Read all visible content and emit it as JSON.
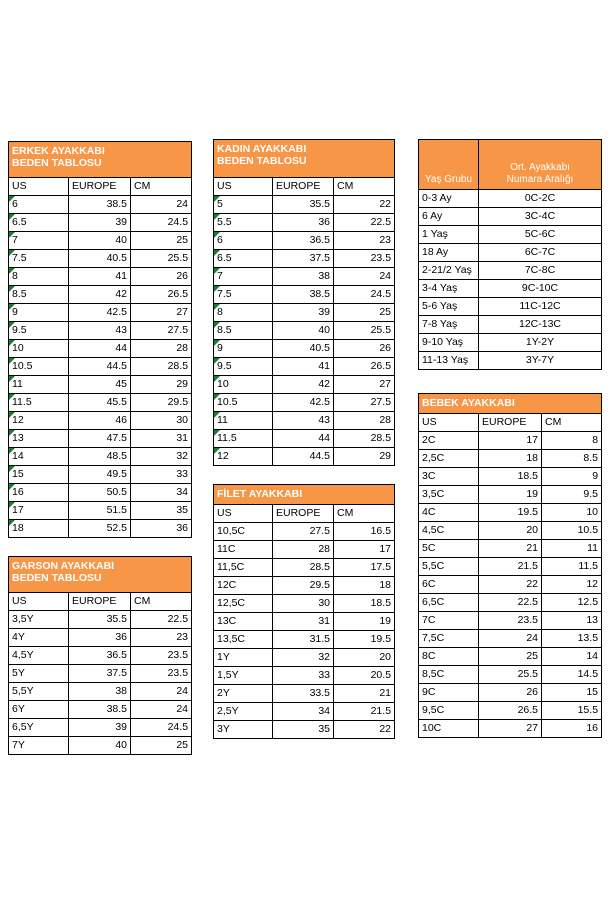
{
  "erkek": {
    "title1": "ERKEK AYAKKABI",
    "title2": "BEDEN TABLOSU",
    "headers": [
      "US",
      "EUROPE",
      "CM"
    ],
    "rows": [
      [
        "6",
        "38.5",
        "24"
      ],
      [
        "6.5",
        "39",
        "24.5"
      ],
      [
        "7",
        "40",
        "25"
      ],
      [
        "7.5",
        "40.5",
        "25.5"
      ],
      [
        "8",
        "41",
        "26"
      ],
      [
        "8.5",
        "42",
        "26.5"
      ],
      [
        "9",
        "42.5",
        "27"
      ],
      [
        "9.5",
        "43",
        "27.5"
      ],
      [
        "10",
        "44",
        "28"
      ],
      [
        "10.5",
        "44.5",
        "28.5"
      ],
      [
        "11",
        "45",
        "29"
      ],
      [
        "11.5",
        "45.5",
        "29.5"
      ],
      [
        "12",
        "46",
        "30"
      ],
      [
        "13",
        "47.5",
        "31"
      ],
      [
        "14",
        "48.5",
        "32"
      ],
      [
        "15",
        "49.5",
        "33"
      ],
      [
        "16",
        "50.5",
        "34"
      ],
      [
        "17",
        "51.5",
        "35"
      ],
      [
        "18",
        "52.5",
        "36"
      ]
    ]
  },
  "garson": {
    "title1": "GARSON AYAKKABI",
    "title2": "BEDEN TABLOSU",
    "headers": [
      "US",
      "EUROPE",
      "CM"
    ],
    "rows": [
      [
        "3,5Y",
        "35.5",
        "22.5"
      ],
      [
        "4Y",
        "36",
        "23"
      ],
      [
        "4,5Y",
        "36.5",
        "23.5"
      ],
      [
        "5Y",
        "37.5",
        "23.5"
      ],
      [
        "5,5Y",
        "38",
        "24"
      ],
      [
        "6Y",
        "38.5",
        "24"
      ],
      [
        "6,5Y",
        "39",
        "24.5"
      ],
      [
        "7Y",
        "40",
        "25"
      ]
    ]
  },
  "kadin": {
    "title1": "KADIN AYAKKABI",
    "title2": "BEDEN TABLOSU",
    "headers": [
      "US",
      "EUROPE",
      "CM"
    ],
    "rows": [
      [
        "5",
        "35.5",
        "22"
      ],
      [
        "5.5",
        "36",
        "22.5"
      ],
      [
        "6",
        "36.5",
        "23"
      ],
      [
        "6.5",
        "37.5",
        "23.5"
      ],
      [
        "7",
        "38",
        "24"
      ],
      [
        "7.5",
        "38.5",
        "24.5"
      ],
      [
        "8",
        "39",
        "25"
      ],
      [
        "8.5",
        "40",
        "25.5"
      ],
      [
        "9",
        "40.5",
        "26"
      ],
      [
        "9.5",
        "41",
        "26.5"
      ],
      [
        "10",
        "42",
        "27"
      ],
      [
        "10.5",
        "42.5",
        "27.5"
      ],
      [
        "11",
        "43",
        "28"
      ],
      [
        "11.5",
        "44",
        "28.5"
      ],
      [
        "12",
        "44.5",
        "29"
      ]
    ]
  },
  "filet": {
    "title": "FİLET AYAKKABI",
    "headers": [
      "US",
      "EUROPE",
      "CM"
    ],
    "rows": [
      [
        "10,5C",
        "27.5",
        "16.5"
      ],
      [
        "11C",
        "28",
        "17"
      ],
      [
        "11,5C",
        "28.5",
        "17.5"
      ],
      [
        "12C",
        "29.5",
        "18"
      ],
      [
        "12,5C",
        "30",
        "18.5"
      ],
      [
        "13C",
        "31",
        "19"
      ],
      [
        "13,5C",
        "31.5",
        "19.5"
      ],
      [
        "1Y",
        "32",
        "20"
      ],
      [
        "1,5Y",
        "33",
        "20.5"
      ],
      [
        "2Y",
        "33.5",
        "21"
      ],
      [
        "2,5Y",
        "34",
        "21.5"
      ],
      [
        "3Y",
        "35",
        "22"
      ]
    ]
  },
  "yas": {
    "header1": "Yaş Grubu",
    "header2a": "Ort. Ayakkabı",
    "header2b": "Numara Aralığı",
    "rows": [
      [
        "0-3 Ay",
        "0C-2C"
      ],
      [
        "6 Ay",
        "3C-4C"
      ],
      [
        "1 Yaş",
        "5C-6C"
      ],
      [
        "18 Ay",
        "6C-7C"
      ],
      [
        "2-21/2 Yaş",
        "7C-8C"
      ],
      [
        "3-4 Yaş",
        "9C-10C"
      ],
      [
        "5-6 Yaş",
        "11C-12C"
      ],
      [
        "7-8 Yaş",
        "12C-13C"
      ],
      [
        "9-10 Yaş",
        "1Y-2Y"
      ],
      [
        "11-13 Yaş",
        "3Y-7Y"
      ]
    ]
  },
  "bebek": {
    "title": "BEBEK AYAKKABI",
    "headers": [
      "US",
      "EUROPE",
      "CM"
    ],
    "rows": [
      [
        "2C",
        "17",
        "8"
      ],
      [
        "2,5C",
        "18",
        "8.5"
      ],
      [
        "3C",
        "18.5",
        "9"
      ],
      [
        "3,5C",
        "19",
        "9.5"
      ],
      [
        "4C",
        "19.5",
        "10"
      ],
      [
        "4,5C",
        "20",
        "10.5"
      ],
      [
        "5C",
        "21",
        "11"
      ],
      [
        "5,5C",
        "21.5",
        "11.5"
      ],
      [
        "6C",
        "22",
        "12"
      ],
      [
        "6,5C",
        "22.5",
        "12.5"
      ],
      [
        "7C",
        "23.5",
        "13"
      ],
      [
        "7,5C",
        "24",
        "13.5"
      ],
      [
        "8C",
        "25",
        "14"
      ],
      [
        "8,5C",
        "25.5",
        "14.5"
      ],
      [
        "9C",
        "26",
        "15"
      ],
      [
        "9,5C",
        "26.5",
        "15.5"
      ],
      [
        "10C",
        "27",
        "16"
      ]
    ]
  }
}
